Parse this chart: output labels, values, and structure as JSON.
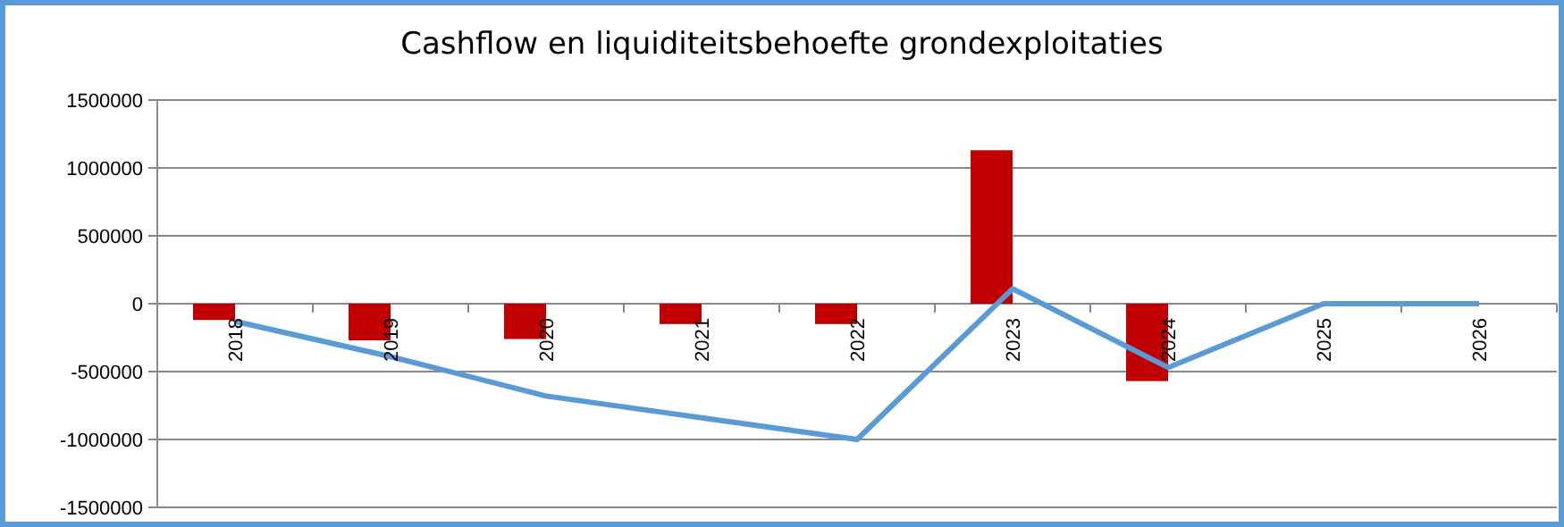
{
  "chart_data": {
    "type": "bar",
    "title": "Cashflow en liquiditeitsbehoefte grondexploitaties",
    "categories": [
      "2018",
      "2019",
      "2020",
      "2021",
      "2022",
      "2023",
      "2024",
      "2025",
      "2026"
    ],
    "series": [
      {
        "color": "#c00000",
        "values": [
          -120000,
          -270000,
          -260000,
          -150000,
          -150000,
          1130000,
          -570000,
          0,
          0
        ]
      },
      {
        "type": "line",
        "color": "#5b9bd5",
        "values": [
          -130000,
          -390000,
          -680000,
          -840000,
          -1000000,
          110000,
          -470000,
          0,
          0
        ]
      }
    ],
    "ylim": [
      -1500000,
      1500000
    ],
    "yticks": [
      -1500000,
      -1000000,
      -500000,
      0,
      500000,
      1000000,
      1500000
    ],
    "grid": "y"
  }
}
